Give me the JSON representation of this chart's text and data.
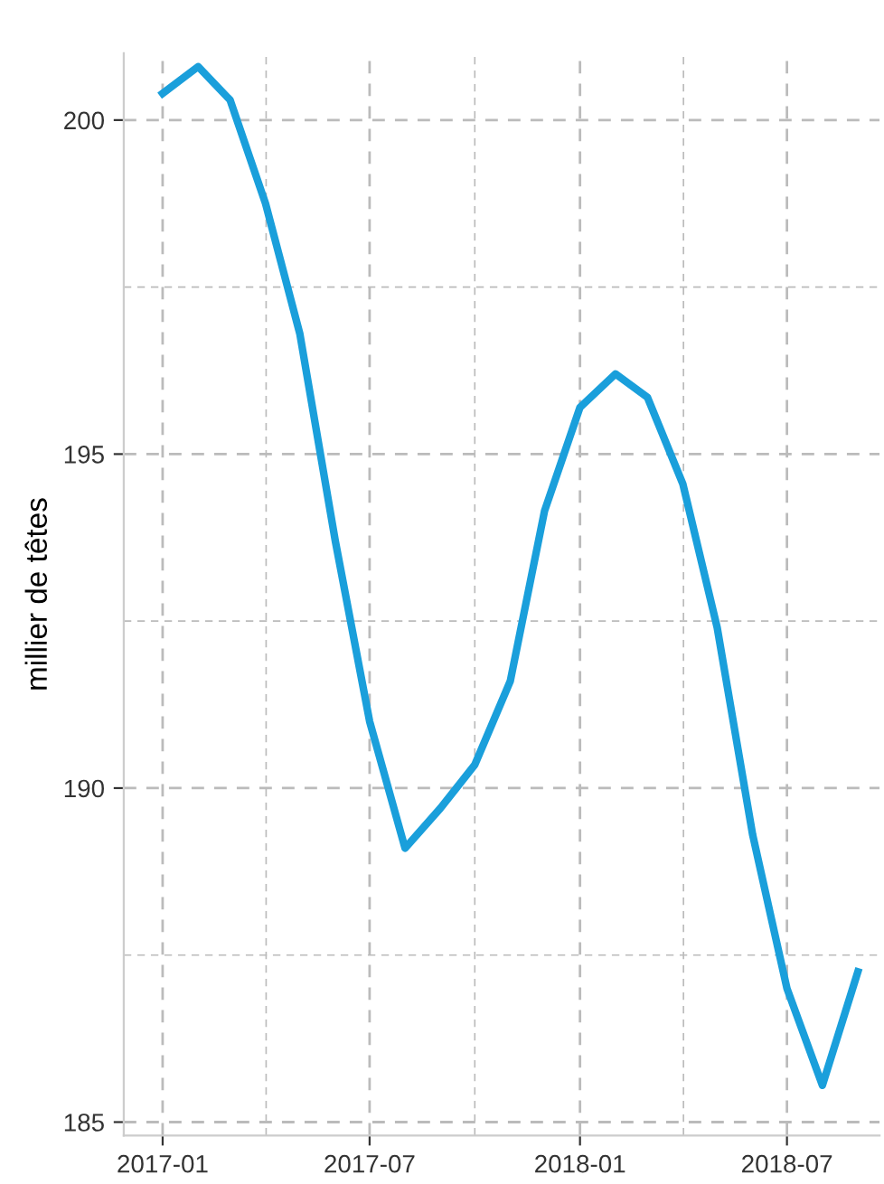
{
  "chart_data": {
    "type": "line",
    "ylabel": "millier de têtes",
    "x": [
      "2017-01",
      "2017-02",
      "2017-03",
      "2017-04",
      "2017-05",
      "2017-06",
      "2017-07",
      "2017-08",
      "2017-09",
      "2017-10",
      "2017-11",
      "2017-12",
      "2018-01",
      "2018-02",
      "2018-03",
      "2018-04",
      "2018-05",
      "2018-06",
      "2018-07",
      "2018-08",
      "2018-09"
    ],
    "series": [
      {
        "color": "#1a9fdb",
        "values": [
          200.4,
          200.8,
          200.3,
          198.75,
          196.8,
          193.7,
          191.0,
          189.1,
          189.7,
          190.35,
          191.6,
          194.15,
          195.7,
          196.2,
          195.85,
          194.55,
          192.4,
          189.3,
          187.0,
          185.55,
          187.25
        ]
      }
    ],
    "xlim": [
      "2016-11-28",
      "2018-09-20"
    ],
    "xticks": [
      {
        "value": "2017-01",
        "label": "2017-01"
      },
      {
        "value": "2017-07",
        "label": "2017-07"
      },
      {
        "value": "2018-01",
        "label": "2018-01"
      },
      {
        "value": "2018-07",
        "label": "2018-07"
      }
    ],
    "ylim": [
      184.8,
      201.0
    ],
    "yticks": [
      185,
      190,
      195,
      200
    ],
    "grid": true,
    "line_style": "solid",
    "marker": "none"
  }
}
